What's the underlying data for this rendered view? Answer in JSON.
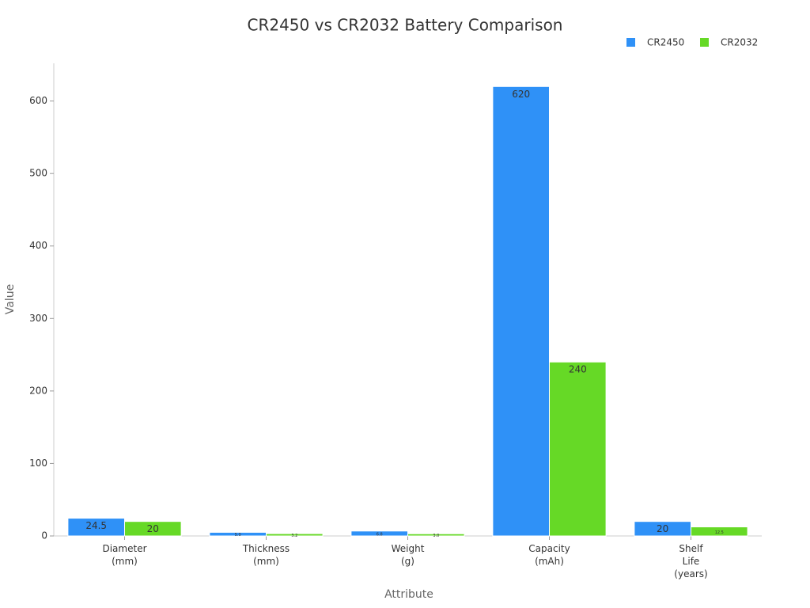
{
  "chart_data": {
    "type": "bar",
    "title": "CR2450 vs CR2032 Battery Comparison",
    "x_label": "Attribute",
    "y_label": "Value",
    "categories": [
      "Diameter\n(mm)",
      "Thickness\n(mm)",
      "Weight\n(g)",
      "Capacity\n(mAh)",
      "Shelf\nLife\n(years)"
    ],
    "series": [
      {
        "name": "CR2450",
        "color": "#2f91f7",
        "values": [
          24.5,
          5.0,
          6.8,
          620,
          20
        ],
        "value_labels": [
          "24.5",
          "5.0",
          "6.8",
          "620",
          "20"
        ]
      },
      {
        "name": "CR2032",
        "color": "#66d926",
        "values": [
          20,
          3.2,
          3.0,
          240,
          12.5
        ],
        "value_labels": [
          "20",
          "3.2",
          "3.0",
          "240",
          "12.5"
        ]
      }
    ],
    "ylim": [
      0,
      652
    ],
    "yticks": [
      0,
      100,
      200,
      300,
      400,
      500,
      600
    ],
    "legend": "top-right"
  }
}
